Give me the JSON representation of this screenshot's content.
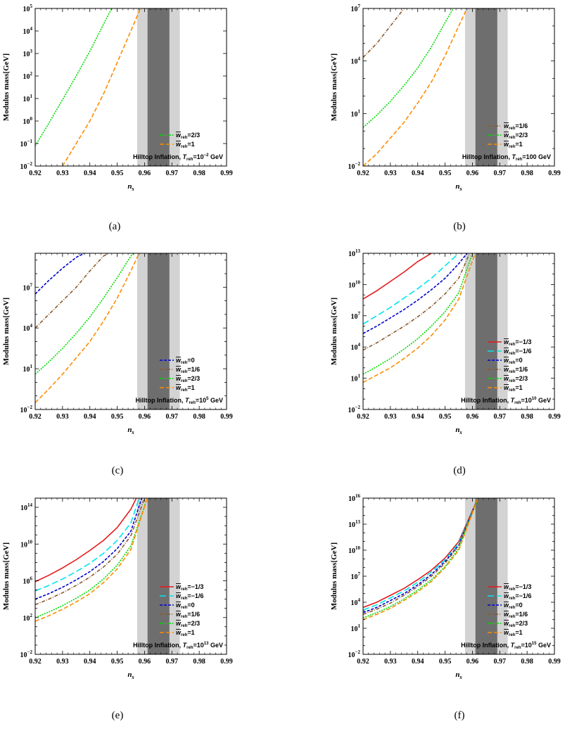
{
  "figure": {
    "ylabel": "Modulus mass[GeV]",
    "xlabel": "n",
    "xlabel_sub": "s",
    "x_ticks": [
      "0.92",
      "0.93",
      "0.94",
      "0.95",
      "0.96",
      "0.97",
      "0.98",
      "0.99"
    ],
    "bands": {
      "outer": [
        0.9573,
        0.9729
      ],
      "inner": [
        0.9611,
        0.9691
      ],
      "outer_color": "#d3d3d3",
      "inner_color": "#6e6e6e"
    },
    "legend_prefix": "w",
    "legend_sub": "reh",
    "note_prefix": "Hilltop Inflation, ",
    "note_T": "T",
    "note_sub": "reh",
    "styles": {
      "-1/3": {
        "color": "#e41a1c",
        "dash": ""
      },
      "-1/6": {
        "color": "#00e5ee",
        "dash": "9,4"
      },
      "0": {
        "color": "#0000cd",
        "dash": "4,2"
      },
      "1/6": {
        "color": "#8b5a2b",
        "dash": "5,2,1,2"
      },
      "2/3": {
        "color": "#00dd00",
        "dash": "2,1.5"
      },
      "1": {
        "color": "#ff8c00",
        "dash": "6,3"
      }
    }
  },
  "chart_data": [
    {
      "type": "line",
      "caption": "(a)",
      "T_text": "=10",
      "T_exp": "−2",
      "T_unit": " GeV",
      "ylim_exp": [
        -2,
        5
      ],
      "ytick_exps": [
        -2,
        -1,
        0,
        1,
        2,
        3,
        4,
        5
      ],
      "xlim": [
        0.92,
        0.99
      ],
      "series": [
        {
          "name": "2/3",
          "legend": "=2/3",
          "x": [
            0.92,
            0.925,
            0.93,
            0.935,
            0.94,
            0.945,
            0.948
          ],
          "log10_y": [
            -1.1,
            -0.1,
            0.95,
            2.0,
            3.1,
            4.3,
            5.0
          ]
        },
        {
          "name": "1",
          "legend": "=1",
          "x": [
            0.93,
            0.935,
            0.94,
            0.945,
            0.95,
            0.955,
            0.9585
          ],
          "log10_y": [
            -2.0,
            -1.0,
            0.0,
            1.2,
            2.6,
            4.0,
            5.0
          ]
        }
      ]
    },
    {
      "type": "line",
      "caption": "(b)",
      "T_text": "=100",
      "T_exp": "",
      "T_unit": " GeV",
      "ylim_exp": [
        -2,
        7
      ],
      "ytick_exps": [
        -2,
        1,
        4,
        7
      ],
      "xlim": [
        0.92,
        0.99
      ],
      "series": [
        {
          "name": "1/6",
          "legend": "=1/6",
          "x": [
            0.92,
            0.925,
            0.93,
            0.935
          ],
          "log10_y": [
            4.2,
            5.0,
            6.0,
            7.0
          ]
        },
        {
          "name": "2/3",
          "legend": "=2/3",
          "x": [
            0.92,
            0.925,
            0.93,
            0.935,
            0.94,
            0.945,
            0.95,
            0.953
          ],
          "log10_y": [
            0.2,
            0.9,
            1.7,
            2.6,
            3.6,
            4.8,
            6.2,
            7.0
          ]
        },
        {
          "name": "1",
          "legend": "=1",
          "x": [
            0.92,
            0.925,
            0.93,
            0.935,
            0.94,
            0.945,
            0.95,
            0.955,
            0.958
          ],
          "log10_y": [
            -2.0,
            -1.3,
            -0.4,
            0.5,
            1.6,
            2.8,
            4.3,
            6.0,
            7.0
          ]
        }
      ]
    },
    {
      "type": "line",
      "caption": "(c)",
      "T_text": "=10",
      "T_exp": "5",
      "T_unit": " GeV",
      "ylim_exp": [
        -2,
        9.5
      ],
      "ytick_exps": [
        -2,
        1,
        4,
        7
      ],
      "xlim": [
        0.92,
        0.99
      ],
      "series": [
        {
          "name": "0",
          "legend": "=0",
          "x": [
            0.92,
            0.925,
            0.93,
            0.935,
            0.938
          ],
          "log10_y": [
            6.5,
            7.5,
            8.4,
            9.2,
            9.5
          ]
        },
        {
          "name": "1/6",
          "legend": "=1/6",
          "x": [
            0.92,
            0.925,
            0.93,
            0.935,
            0.94,
            0.945,
            0.947
          ],
          "log10_y": [
            4.0,
            5.0,
            6.0,
            7.0,
            8.2,
            9.3,
            9.5
          ]
        },
        {
          "name": "2/3",
          "legend": "=2/3",
          "x": [
            0.92,
            0.925,
            0.93,
            0.935,
            0.94,
            0.945,
            0.95,
            0.955,
            0.956
          ],
          "log10_y": [
            0.6,
            1.5,
            2.5,
            3.6,
            4.8,
            6.2,
            7.7,
            9.3,
            9.5
          ]
        },
        {
          "name": "1",
          "legend": "=1",
          "x": [
            0.92,
            0.925,
            0.93,
            0.935,
            0.94,
            0.945,
            0.95,
            0.955,
            0.958
          ],
          "log10_y": [
            -1.5,
            -0.5,
            0.6,
            1.8,
            3.0,
            4.5,
            6.2,
            8.2,
            9.5
          ]
        }
      ]
    },
    {
      "type": "line",
      "caption": "(d)",
      "T_text": "=10",
      "T_exp": "10",
      "T_unit": " GeV",
      "ylim_exp": [
        -2,
        13
      ],
      "ytick_exps": [
        -2,
        1,
        4,
        7,
        10,
        13
      ],
      "xlim": [
        0.92,
        0.99
      ],
      "series": [
        {
          "name": "-1/3",
          "legend": "=−1/3",
          "x": [
            0.92,
            0.925,
            0.93,
            0.935,
            0.94,
            0.945
          ],
          "log10_y": [
            8.6,
            9.4,
            10.3,
            11.2,
            12.2,
            13.0
          ]
        },
        {
          "name": "-1/6",
          "legend": "=−1/6",
          "x": [
            0.92,
            0.925,
            0.93,
            0.935,
            0.94,
            0.945,
            0.95,
            0.955
          ],
          "log10_y": [
            6.2,
            7.0,
            7.8,
            8.7,
            9.6,
            10.6,
            11.8,
            13.0
          ]
        },
        {
          "name": "0",
          "legend": "=0",
          "x": [
            0.92,
            0.925,
            0.93,
            0.935,
            0.94,
            0.945,
            0.95,
            0.955,
            0.958
          ],
          "log10_y": [
            5.3,
            6.0,
            6.8,
            7.6,
            8.5,
            9.5,
            10.6,
            12.0,
            13.0
          ]
        },
        {
          "name": "1/6",
          "legend": "=1/6",
          "x": [
            0.92,
            0.925,
            0.93,
            0.935,
            0.94,
            0.945,
            0.95,
            0.955,
            0.959
          ],
          "log10_y": [
            3.7,
            4.4,
            5.2,
            6.0,
            6.9,
            7.9,
            9.1,
            10.6,
            13.0
          ]
        },
        {
          "name": "2/3",
          "legend": "=2/3",
          "x": [
            0.92,
            0.925,
            0.93,
            0.935,
            0.94,
            0.945,
            0.95,
            0.955,
            0.96
          ],
          "log10_y": [
            1.4,
            2.1,
            2.9,
            3.8,
            4.8,
            6.0,
            7.4,
            9.2,
            13.0
          ]
        },
        {
          "name": "1",
          "legend": "=1",
          "x": [
            0.92,
            0.925,
            0.93,
            0.935,
            0.94,
            0.945,
            0.95,
            0.955,
            0.961
          ],
          "log10_y": [
            0.6,
            1.3,
            2.0,
            2.9,
            3.9,
            5.1,
            6.6,
            8.6,
            13.0
          ]
        }
      ]
    },
    {
      "type": "line",
      "caption": "(e)",
      "T_text": "=10",
      "T_exp": "13",
      "T_unit": " GeV",
      "ylim_exp": [
        -2,
        15
      ],
      "ytick_exps": [
        -2,
        2,
        6,
        10,
        14
      ],
      "xlim": [
        0.92,
        0.99
      ],
      "series": [
        {
          "name": "-1/3",
          "legend": "=−1/3",
          "x": [
            0.92,
            0.925,
            0.93,
            0.935,
            0.94,
            0.945,
            0.95,
            0.955,
            0.957
          ],
          "log10_y": [
            5.9,
            6.6,
            7.4,
            8.3,
            9.3,
            10.4,
            11.8,
            13.8,
            15.0
          ]
        },
        {
          "name": "-1/6",
          "legend": "=−1/6",
          "x": [
            0.92,
            0.925,
            0.93,
            0.935,
            0.94,
            0.945,
            0.95,
            0.955,
            0.958
          ],
          "log10_y": [
            4.9,
            5.5,
            6.2,
            7.0,
            7.9,
            9.0,
            10.4,
            12.3,
            15.0
          ]
        },
        {
          "name": "0",
          "legend": "=0",
          "x": [
            0.92,
            0.925,
            0.93,
            0.935,
            0.94,
            0.945,
            0.95,
            0.955,
            0.959
          ],
          "log10_y": [
            4.0,
            4.6,
            5.3,
            6.1,
            7.0,
            8.1,
            9.5,
            11.4,
            15.0
          ]
        },
        {
          "name": "1/6",
          "legend": "=1/6",
          "x": [
            0.92,
            0.925,
            0.93,
            0.935,
            0.94,
            0.945,
            0.95,
            0.955,
            0.96
          ],
          "log10_y": [
            3.4,
            4.0,
            4.7,
            5.5,
            6.4,
            7.5,
            8.9,
            10.9,
            15.0
          ]
        },
        {
          "name": "2/3",
          "legend": "=2/3",
          "x": [
            0.92,
            0.925,
            0.93,
            0.935,
            0.94,
            0.945,
            0.95,
            0.955,
            0.961
          ],
          "log10_y": [
            2.0,
            2.6,
            3.3,
            4.1,
            5.0,
            6.2,
            7.7,
            9.8,
            15.0
          ]
        },
        {
          "name": "1",
          "legend": "=1",
          "x": [
            0.92,
            0.925,
            0.93,
            0.935,
            0.94,
            0.945,
            0.95,
            0.955,
            0.961
          ],
          "log10_y": [
            1.6,
            2.2,
            2.9,
            3.7,
            4.6,
            5.8,
            7.3,
            9.4,
            15.0
          ]
        }
      ]
    },
    {
      "type": "line",
      "caption": "(f)",
      "T_text": "=10",
      "T_exp": "15",
      "T_unit": " GeV",
      "ylim_exp": [
        -2,
        16
      ],
      "ytick_exps": [
        -2,
        1,
        4,
        7,
        10,
        13,
        16
      ],
      "xlim": [
        0.92,
        0.99
      ],
      "series": [
        {
          "name": "-1/3",
          "legend": "=−1/3",
          "x": [
            0.92,
            0.925,
            0.93,
            0.935,
            0.94,
            0.945,
            0.95,
            0.955,
            0.962
          ],
          "log10_y": [
            3.4,
            4.0,
            4.8,
            5.6,
            6.6,
            7.7,
            9.1,
            11.0,
            16.0
          ]
        },
        {
          "name": "-1/6",
          "legend": "=−1/6",
          "x": [
            0.92,
            0.925,
            0.93,
            0.935,
            0.94,
            0.945,
            0.95,
            0.955,
            0.962
          ],
          "log10_y": [
            3.1,
            3.7,
            4.5,
            5.3,
            6.3,
            7.5,
            8.9,
            10.8,
            16.0
          ]
        },
        {
          "name": "0",
          "legend": "=0",
          "x": [
            0.92,
            0.925,
            0.93,
            0.935,
            0.94,
            0.945,
            0.95,
            0.955,
            0.962
          ],
          "log10_y": [
            2.8,
            3.4,
            4.2,
            5.0,
            6.0,
            7.2,
            8.7,
            10.6,
            16.0
          ]
        },
        {
          "name": "1/6",
          "legend": "=1/6",
          "x": [
            0.92,
            0.925,
            0.93,
            0.935,
            0.94,
            0.945,
            0.95,
            0.955,
            0.962
          ],
          "log10_y": [
            2.6,
            3.2,
            3.9,
            4.8,
            5.8,
            7.0,
            8.5,
            10.5,
            16.0
          ]
        },
        {
          "name": "2/3",
          "legend": "=2/3",
          "x": [
            0.92,
            0.925,
            0.93,
            0.935,
            0.94,
            0.945,
            0.95,
            0.955,
            0.962
          ],
          "log10_y": [
            2.2,
            2.8,
            3.5,
            4.4,
            5.4,
            6.6,
            8.1,
            10.2,
            16.0
          ]
        },
        {
          "name": "1",
          "legend": "=1",
          "x": [
            0.92,
            0.925,
            0.93,
            0.935,
            0.94,
            0.945,
            0.95,
            0.955,
            0.962
          ],
          "log10_y": [
            2.0,
            2.6,
            3.3,
            4.2,
            5.2,
            6.4,
            8.0,
            10.0,
            16.0
          ]
        }
      ]
    }
  ]
}
